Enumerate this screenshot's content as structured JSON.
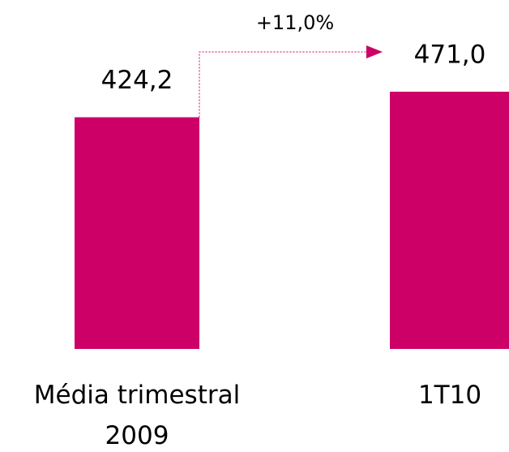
{
  "chart_data": {
    "type": "bar",
    "categories": [
      "Média trimestral 2009",
      "1T10"
    ],
    "values": [
      424.2,
      471.0
    ],
    "value_labels": [
      "424,2",
      "471,0"
    ],
    "annotation": "+11,0%",
    "color": "#cc0066"
  }
}
